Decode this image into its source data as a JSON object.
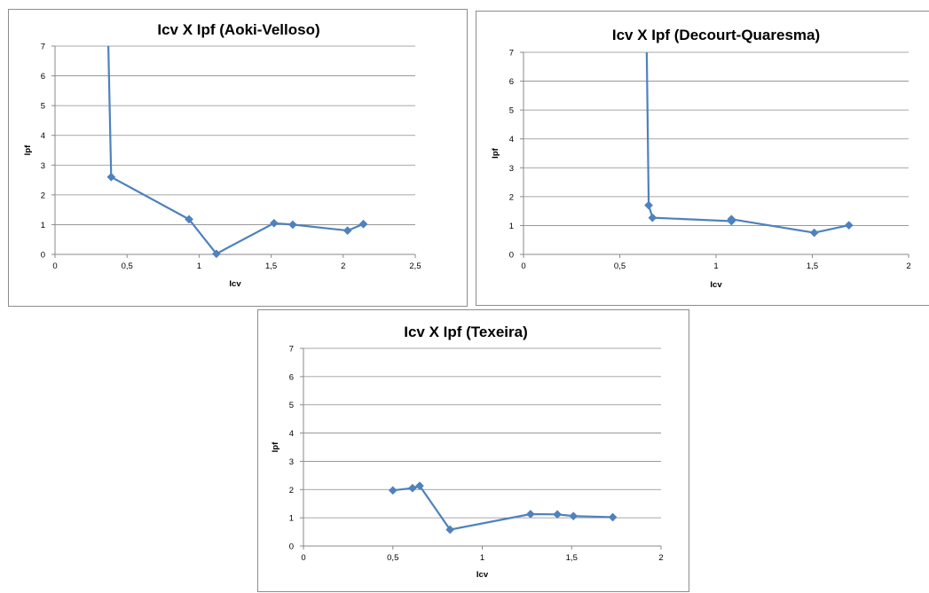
{
  "chart_data": [
    {
      "type": "line",
      "title": "Icv X Ipf (Aoki-Velloso)",
      "xlabel": "Icv",
      "ylabel": "Ipf",
      "xlim": [
        0,
        2.5
      ],
      "ylim": [
        0,
        7
      ],
      "xticks": [
        0,
        0.5,
        1,
        1.5,
        2,
        2.5
      ],
      "xtick_labels": [
        "0",
        "0,5",
        "1",
        "1,5",
        "2",
        "2,5"
      ],
      "yticks": [
        0,
        1,
        2,
        3,
        4,
        5,
        6,
        7
      ],
      "ytick_labels": [
        "0",
        "1",
        "2",
        "3",
        "4",
        "5",
        "6",
        "7"
      ],
      "grid": "horizontal",
      "legend": "none",
      "color": "#4F81BD",
      "series": [
        {
          "x": [
            0.37,
            0.39,
            0.93,
            1.12,
            1.52,
            1.65,
            2.03,
            2.14
          ],
          "y": [
            7.0,
            2.6,
            1.18,
            0.02,
            1.05,
            1.0,
            0.8,
            1.02
          ],
          "markers": [
            false,
            true,
            true,
            true,
            true,
            true,
            true,
            true
          ]
        }
      ]
    },
    {
      "type": "line",
      "title": "Icv X Ipf (Decourt-Quaresma)",
      "xlabel": "Icv",
      "ylabel": "Ipf",
      "xlim": [
        0,
        2
      ],
      "ylim": [
        0,
        7
      ],
      "xticks": [
        0,
        0.5,
        1,
        1.5,
        2
      ],
      "xtick_labels": [
        "0",
        "0,5",
        "1",
        "1,5",
        "2"
      ],
      "yticks": [
        0,
        1,
        2,
        3,
        4,
        5,
        6,
        7
      ],
      "ytick_labels": [
        "0",
        "1",
        "2",
        "3",
        "4",
        "5",
        "6",
        "7"
      ],
      "grid": "horizontal",
      "legend": "none",
      "color": "#4F81BD",
      "series": [
        {
          "x": [
            0.64,
            0.65,
            0.67,
            1.08,
            1.08,
            1.51,
            1.69
          ],
          "y": [
            7.0,
            1.7,
            1.27,
            1.15,
            1.22,
            0.75,
            1.01
          ],
          "markers": [
            false,
            true,
            true,
            true,
            true,
            true,
            true
          ]
        }
      ]
    },
    {
      "type": "line",
      "title": "Icv X Ipf (Texeira)",
      "xlabel": "Icv",
      "ylabel": "Ipf",
      "xlim": [
        0,
        2
      ],
      "ylim": [
        0,
        7
      ],
      "xticks": [
        0,
        0.5,
        1,
        1.5,
        2
      ],
      "xtick_labels": [
        "0",
        "0,5",
        "1",
        "1,5",
        "2"
      ],
      "yticks": [
        0,
        1,
        2,
        3,
        4,
        5,
        6,
        7
      ],
      "ytick_labels": [
        "0",
        "1",
        "2",
        "3",
        "4",
        "5",
        "6",
        "7"
      ],
      "grid": "horizontal",
      "legend": "none",
      "color": "#4F81BD",
      "series": [
        {
          "x": [
            0.5,
            0.61,
            0.65,
            0.82,
            1.27,
            1.42,
            1.51,
            1.73
          ],
          "y": [
            1.97,
            2.05,
            2.13,
            0.58,
            1.13,
            1.12,
            1.06,
            1.02
          ],
          "markers": [
            true,
            true,
            true,
            true,
            true,
            true,
            true,
            true
          ]
        }
      ]
    }
  ]
}
